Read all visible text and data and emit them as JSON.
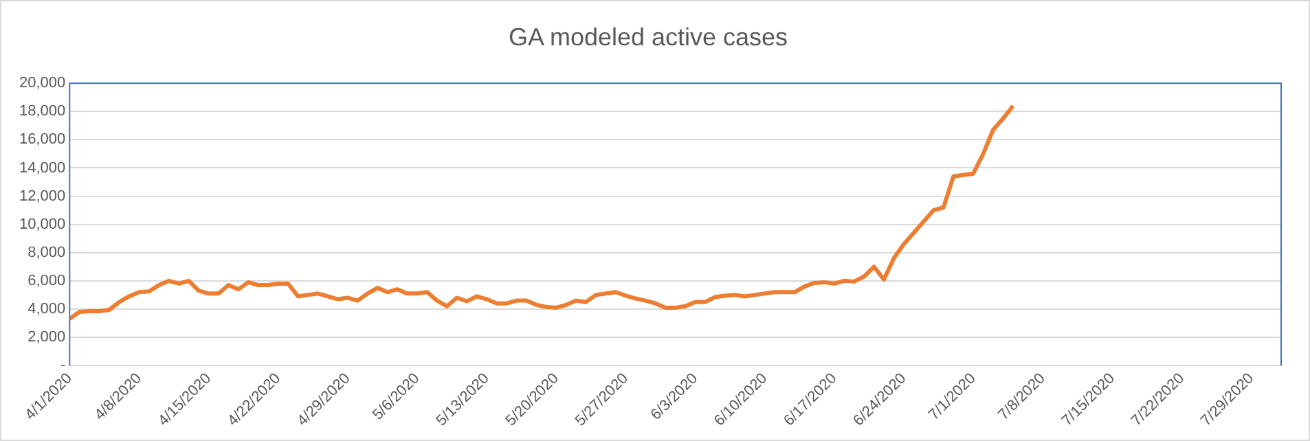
{
  "chart_data": {
    "type": "line",
    "title": "GA modeled active cases",
    "x": [
      "2020-04-01",
      "2020-04-02",
      "2020-04-03",
      "2020-04-04",
      "2020-04-05",
      "2020-04-06",
      "2020-04-07",
      "2020-04-08",
      "2020-04-09",
      "2020-04-10",
      "2020-04-11",
      "2020-04-12",
      "2020-04-13",
      "2020-04-14",
      "2020-04-15",
      "2020-04-16",
      "2020-04-17",
      "2020-04-18",
      "2020-04-19",
      "2020-04-20",
      "2020-04-21",
      "2020-04-22",
      "2020-04-23",
      "2020-04-24",
      "2020-04-25",
      "2020-04-26",
      "2020-04-27",
      "2020-04-28",
      "2020-04-29",
      "2020-04-30",
      "2020-05-01",
      "2020-05-02",
      "2020-05-03",
      "2020-05-04",
      "2020-05-05",
      "2020-05-06",
      "2020-05-07",
      "2020-05-08",
      "2020-05-09",
      "2020-05-10",
      "2020-05-11",
      "2020-05-12",
      "2020-05-13",
      "2020-05-14",
      "2020-05-15",
      "2020-05-16",
      "2020-05-17",
      "2020-05-18",
      "2020-05-19",
      "2020-05-20",
      "2020-05-21",
      "2020-05-22",
      "2020-05-23",
      "2020-05-24",
      "2020-05-25",
      "2020-05-26",
      "2020-05-27",
      "2020-05-28",
      "2020-05-29",
      "2020-05-30",
      "2020-05-31",
      "2020-06-01",
      "2020-06-02",
      "2020-06-03",
      "2020-06-04",
      "2020-06-05",
      "2020-06-06",
      "2020-06-07",
      "2020-06-08",
      "2020-06-09",
      "2020-06-10",
      "2020-06-11",
      "2020-06-12",
      "2020-06-13",
      "2020-06-14",
      "2020-06-15",
      "2020-06-16",
      "2020-06-17",
      "2020-06-18",
      "2020-06-19",
      "2020-06-20",
      "2020-06-21",
      "2020-06-22",
      "2020-06-23",
      "2020-06-24",
      "2020-06-25",
      "2020-06-26",
      "2020-06-27",
      "2020-06-28",
      "2020-06-29",
      "2020-06-30",
      "2020-07-01",
      "2020-07-02",
      "2020-07-03",
      "2020-07-04",
      "2020-07-05"
    ],
    "series": [
      {
        "color": "#ed7d31",
        "values": [
          3300,
          3800,
          3850,
          3850,
          3950,
          4500,
          4900,
          5200,
          5250,
          5700,
          6000,
          5800,
          6000,
          5300,
          5100,
          5100,
          5700,
          5400,
          5900,
          5700,
          5700,
          5800,
          5800,
          4900,
          5000,
          5100,
          4900,
          4700,
          4800,
          4600,
          5100,
          5500,
          5200,
          5400,
          5100,
          5100,
          5200,
          4600,
          4200,
          4800,
          4550,
          4900,
          4700,
          4400,
          4400,
          4600,
          4600,
          4300,
          4150,
          4100,
          4300,
          4600,
          4500,
          5000,
          5100,
          5200,
          4950,
          4750,
          4600,
          4400,
          4100,
          4100,
          4200,
          4500,
          4500,
          4850,
          4950,
          5000,
          4900,
          5000,
          5100,
          5200,
          5200,
          5200,
          5600,
          5850,
          5900,
          5800,
          6000,
          5950,
          6300,
          7000,
          6100,
          7600,
          8600,
          9400,
          10200,
          11000,
          11200,
          13400,
          13500,
          13600,
          15000,
          16700,
          17500,
          18400
        ]
      }
    ],
    "xlim": [
      "2020-04-01",
      "2020-08-01"
    ],
    "xticks": [
      {
        "value": "2020-04-01",
        "label": "4/1/2020"
      },
      {
        "value": "2020-04-08",
        "label": "4/8/2020"
      },
      {
        "value": "2020-04-15",
        "label": "4/15/2020"
      },
      {
        "value": "2020-04-22",
        "label": "4/22/2020"
      },
      {
        "value": "2020-04-29",
        "label": "4/29/2020"
      },
      {
        "value": "2020-05-06",
        "label": "5/6/2020"
      },
      {
        "value": "2020-05-13",
        "label": "5/13/2020"
      },
      {
        "value": "2020-05-20",
        "label": "5/20/2020"
      },
      {
        "value": "2020-05-27",
        "label": "5/27/2020"
      },
      {
        "value": "2020-06-03",
        "label": "6/3/2020"
      },
      {
        "value": "2020-06-10",
        "label": "6/10/2020"
      },
      {
        "value": "2020-06-17",
        "label": "6/17/2020"
      },
      {
        "value": "2020-06-24",
        "label": "6/24/2020"
      },
      {
        "value": "2020-07-01",
        "label": "7/1/2020"
      },
      {
        "value": "2020-07-08",
        "label": "7/8/2020"
      },
      {
        "value": "2020-07-15",
        "label": "7/15/2020"
      },
      {
        "value": "2020-07-22",
        "label": "7/22/2020"
      },
      {
        "value": "2020-07-29",
        "label": "7/29/2020"
      }
    ],
    "ylim": [
      0,
      20000
    ],
    "yticks": [
      {
        "value": 0,
        "label": "-"
      },
      {
        "value": 2000,
        "label": "2,000"
      },
      {
        "value": 4000,
        "label": "4,000"
      },
      {
        "value": 6000,
        "label": "6,000"
      },
      {
        "value": 8000,
        "label": "8,000"
      },
      {
        "value": 10000,
        "label": "10,000"
      },
      {
        "value": 12000,
        "label": "12,000"
      },
      {
        "value": 14000,
        "label": "14,000"
      },
      {
        "value": 16000,
        "label": "16,000"
      },
      {
        "value": 18000,
        "label": "18,000"
      },
      {
        "value": 20000,
        "label": "20,000"
      }
    ],
    "grid": "y",
    "legend": false,
    "marker": "none",
    "line_style": "solid"
  }
}
